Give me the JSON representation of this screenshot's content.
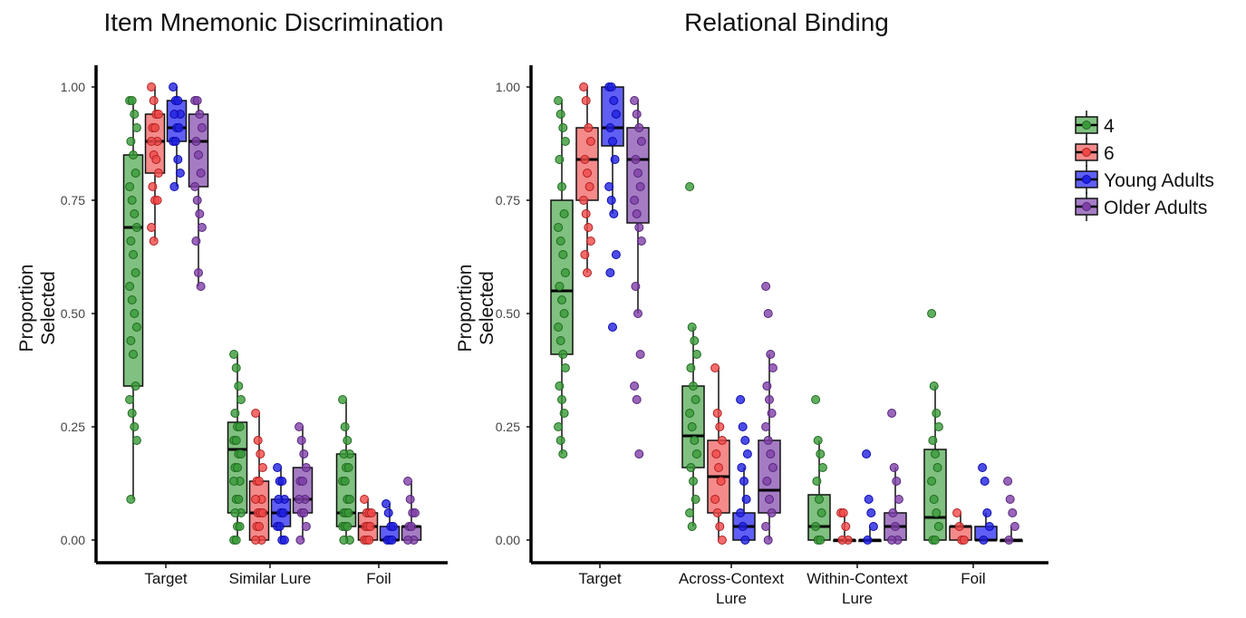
{
  "legend": {
    "items": [
      {
        "label": "4",
        "color": "#3a9a3a"
      },
      {
        "label": "6",
        "color": "#f04848"
      },
      {
        "label": "Young Adults",
        "color": "#2020e0"
      },
      {
        "label": "Older Adults",
        "color": "#8040a8"
      }
    ],
    "placement": "right"
  },
  "chart_data": [
    {
      "type": "box",
      "title": "Item Mnemonic Discrimination",
      "ylabel": "Proportion Selected",
      "xlabel": "",
      "ylim": [
        0,
        1
      ],
      "yticks": [
        "0.00",
        "0.25",
        "0.50",
        "0.75",
        "1.00"
      ],
      "categories": [
        "Target",
        "Similar Lure",
        "Foil"
      ],
      "series": [
        {
          "name": "4",
          "boxes": [
            {
              "min": 0.09,
              "q1": 0.34,
              "median": 0.69,
              "q3": 0.85,
              "max": 0.97,
              "points": [
                0.97,
                0.97,
                0.94,
                0.91,
                0.88,
                0.85,
                0.81,
                0.78,
                0.75,
                0.72,
                0.69,
                0.66,
                0.63,
                0.59,
                0.56,
                0.53,
                0.5,
                0.47,
                0.44,
                0.41,
                0.34,
                0.31,
                0.28,
                0.25,
                0.22,
                0.09
              ]
            },
            {
              "min": 0.0,
              "q1": 0.06,
              "median": 0.2,
              "q3": 0.26,
              "max": 0.41,
              "points": [
                0.41,
                0.38,
                0.34,
                0.31,
                0.28,
                0.25,
                0.25,
                0.22,
                0.22,
                0.19,
                0.19,
                0.16,
                0.16,
                0.13,
                0.13,
                0.09,
                0.09,
                0.06,
                0.06,
                0.03,
                0.03,
                0.0,
                0.0
              ]
            },
            {
              "min": 0.0,
              "q1": 0.03,
              "median": 0.06,
              "q3": 0.19,
              "max": 0.31,
              "points": [
                0.31,
                0.25,
                0.22,
                0.19,
                0.19,
                0.16,
                0.16,
                0.13,
                0.13,
                0.09,
                0.09,
                0.06,
                0.06,
                0.06,
                0.03,
                0.03,
                0.03,
                0.0,
                0.0
              ]
            }
          ]
        },
        {
          "name": "6",
          "boxes": [
            {
              "min": 0.66,
              "q1": 0.81,
              "median": 0.88,
              "q3": 0.94,
              "max": 1.0,
              "points": [
                1.0,
                0.97,
                0.94,
                0.94,
                0.91,
                0.91,
                0.88,
                0.88,
                0.85,
                0.84,
                0.81,
                0.78,
                0.75,
                0.75,
                0.69,
                0.66
              ]
            },
            {
              "min": 0.0,
              "q1": 0.0,
              "median": 0.06,
              "q3": 0.13,
              "max": 0.28,
              "points": [
                0.28,
                0.22,
                0.19,
                0.16,
                0.13,
                0.13,
                0.09,
                0.09,
                0.06,
                0.06,
                0.06,
                0.03,
                0.03,
                0.0,
                0.0
              ]
            },
            {
              "min": 0.0,
              "q1": 0.0,
              "median": 0.03,
              "q3": 0.06,
              "max": 0.09,
              "points": [
                0.09,
                0.06,
                0.06,
                0.06,
                0.03,
                0.03,
                0.03,
                0.0,
                0.0,
                0.0
              ]
            }
          ]
        },
        {
          "name": "Young Adults",
          "boxes": [
            {
              "min": 0.78,
              "q1": 0.88,
              "median": 0.91,
              "q3": 0.97,
              "max": 1.0,
              "points": [
                1.0,
                0.97,
                0.97,
                0.94,
                0.94,
                0.91,
                0.91,
                0.88,
                0.88,
                0.84,
                0.81,
                0.78
              ]
            },
            {
              "min": 0.0,
              "q1": 0.03,
              "median": 0.06,
              "q3": 0.09,
              "max": 0.16,
              "points": [
                0.16,
                0.13,
                0.13,
                0.09,
                0.09,
                0.06,
                0.06,
                0.03,
                0.03,
                0.0,
                0.0
              ]
            },
            {
              "min": 0.0,
              "q1": 0.0,
              "median": 0.0,
              "q3": 0.03,
              "max": 0.08,
              "points": [
                0.08,
                0.06,
                0.03,
                0.03,
                0.0,
                0.0,
                0.0
              ]
            }
          ]
        },
        {
          "name": "Older Adults",
          "boxes": [
            {
              "min": 0.56,
              "q1": 0.78,
              "median": 0.88,
              "q3": 0.94,
              "max": 0.97,
              "points": [
                0.97,
                0.97,
                0.94,
                0.91,
                0.88,
                0.85,
                0.81,
                0.78,
                0.75,
                0.72,
                0.69,
                0.66,
                0.59,
                0.56
              ]
            },
            {
              "min": 0.0,
              "q1": 0.06,
              "median": 0.09,
              "q3": 0.16,
              "max": 0.25,
              "points": [
                0.25,
                0.22,
                0.19,
                0.16,
                0.13,
                0.13,
                0.09,
                0.09,
                0.06,
                0.06,
                0.03,
                0.0
              ]
            },
            {
              "min": 0.0,
              "q1": 0.0,
              "median": 0.03,
              "q3": 0.03,
              "max": 0.13,
              "points": [
                0.13,
                0.09,
                0.06,
                0.06,
                0.03,
                0.03,
                0.0,
                0.0
              ]
            }
          ]
        }
      ]
    },
    {
      "type": "box",
      "title": "Relational Binding",
      "ylabel": "Proportion Selected",
      "xlabel": "",
      "ylim": [
        0,
        1
      ],
      "yticks": [
        "0.00",
        "0.25",
        "0.50",
        "0.75",
        "1.00"
      ],
      "categories": [
        "Target",
        "Across-Context\nLure",
        "Within-Context\nLure",
        "Foil"
      ],
      "series": [
        {
          "name": "4",
          "boxes": [
            {
              "min": 0.19,
              "q1": 0.41,
              "median": 0.55,
              "q3": 0.75,
              "max": 0.97,
              "points": [
                0.97,
                0.94,
                0.91,
                0.88,
                0.84,
                0.78,
                0.72,
                0.69,
                0.66,
                0.63,
                0.59,
                0.56,
                0.53,
                0.5,
                0.47,
                0.44,
                0.41,
                0.38,
                0.34,
                0.31,
                0.28,
                0.25,
                0.22,
                0.19
              ]
            },
            {
              "min": 0.03,
              "q1": 0.16,
              "median": 0.23,
              "q3": 0.34,
              "max": 0.47,
              "points": [
                0.78,
                0.47,
                0.44,
                0.41,
                0.38,
                0.34,
                0.31,
                0.28,
                0.25,
                0.22,
                0.19,
                0.16,
                0.13,
                0.09,
                0.06,
                0.03
              ]
            },
            {
              "min": 0.0,
              "q1": 0.0,
              "median": 0.03,
              "q3": 0.1,
              "max": 0.22,
              "points": [
                0.31,
                0.22,
                0.19,
                0.16,
                0.13,
                0.09,
                0.06,
                0.03,
                0.0,
                0.0
              ]
            },
            {
              "min": 0.0,
              "q1": 0.0,
              "median": 0.05,
              "q3": 0.2,
              "max": 0.34,
              "points": [
                0.5,
                0.34,
                0.28,
                0.25,
                0.22,
                0.19,
                0.16,
                0.13,
                0.09,
                0.06,
                0.03,
                0.0,
                0.0
              ]
            }
          ]
        },
        {
          "name": "6",
          "boxes": [
            {
              "min": 0.59,
              "q1": 0.75,
              "median": 0.84,
              "q3": 0.91,
              "max": 1.0,
              "points": [
                1.0,
                0.97,
                0.91,
                0.88,
                0.84,
                0.81,
                0.78,
                0.75,
                0.72,
                0.69,
                0.66,
                0.63,
                0.59
              ]
            },
            {
              "min": 0.0,
              "q1": 0.06,
              "median": 0.14,
              "q3": 0.22,
              "max": 0.38,
              "points": [
                0.38,
                0.28,
                0.25,
                0.22,
                0.19,
                0.16,
                0.13,
                0.09,
                0.06,
                0.03,
                0.0
              ]
            },
            {
              "min": 0.0,
              "q1": 0.0,
              "median": 0.0,
              "q3": 0.0,
              "max": 0.06,
              "points": [
                0.06,
                0.06,
                0.03,
                0.0,
                0.0
              ]
            },
            {
              "min": 0.0,
              "q1": 0.0,
              "median": 0.03,
              "q3": 0.03,
              "max": 0.06,
              "points": [
                0.06,
                0.03,
                0.0,
                0.0
              ]
            }
          ]
        },
        {
          "name": "Young Adults",
          "boxes": [
            {
              "min": 0.72,
              "q1": 0.87,
              "median": 0.91,
              "q3": 1.0,
              "max": 1.0,
              "points": [
                1.0,
                1.0,
                0.97,
                0.94,
                0.91,
                0.88,
                0.84,
                0.78,
                0.75,
                0.72,
                0.63,
                0.59,
                0.47
              ]
            },
            {
              "min": 0.0,
              "q1": 0.0,
              "median": 0.03,
              "q3": 0.06,
              "max": 0.16,
              "points": [
                0.31,
                0.25,
                0.22,
                0.19,
                0.16,
                0.13,
                0.09,
                0.06,
                0.03,
                0.0
              ]
            },
            {
              "min": 0.0,
              "q1": 0.0,
              "median": 0.0,
              "q3": 0.0,
              "max": 0.03,
              "points": [
                0.19,
                0.09,
                0.06,
                0.03,
                0.0
              ]
            },
            {
              "min": 0.0,
              "q1": 0.0,
              "median": 0.0,
              "q3": 0.03,
              "max": 0.06,
              "points": [
                0.16,
                0.13,
                0.06,
                0.03,
                0.0
              ]
            }
          ]
        },
        {
          "name": "Older Adults",
          "boxes": [
            {
              "min": 0.5,
              "q1": 0.7,
              "median": 0.84,
              "q3": 0.91,
              "max": 0.97,
              "points": [
                0.97,
                0.94,
                0.91,
                0.88,
                0.84,
                0.81,
                0.78,
                0.75,
                0.72,
                0.69,
                0.66,
                0.56,
                0.5,
                0.41,
                0.34,
                0.31,
                0.19
              ]
            },
            {
              "min": 0.0,
              "q1": 0.06,
              "median": 0.11,
              "q3": 0.22,
              "max": 0.41,
              "points": [
                0.56,
                0.5,
                0.41,
                0.38,
                0.34,
                0.31,
                0.28,
                0.25,
                0.22,
                0.19,
                0.16,
                0.13,
                0.09,
                0.06,
                0.03,
                0.0
              ]
            },
            {
              "min": 0.0,
              "q1": 0.0,
              "median": 0.03,
              "q3": 0.06,
              "max": 0.16,
              "points": [
                0.28,
                0.16,
                0.13,
                0.09,
                0.06,
                0.03,
                0.0,
                0.0
              ]
            },
            {
              "min": 0.0,
              "q1": 0.0,
              "median": 0.0,
              "q3": 0.0,
              "max": 0.03,
              "points": [
                0.13,
                0.09,
                0.06,
                0.03,
                0.0
              ]
            }
          ]
        }
      ]
    }
  ]
}
